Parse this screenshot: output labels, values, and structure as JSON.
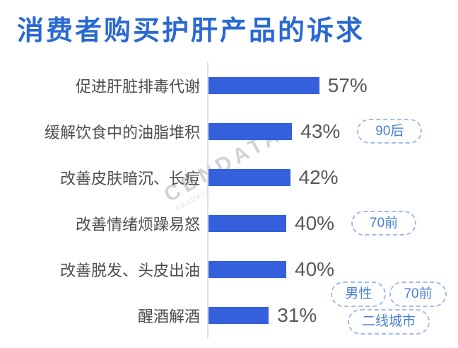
{
  "title": "消费者购买护肝产品的诉求",
  "watermark": {
    "text": "CBNDATA"
  },
  "colors": {
    "title": "#2A69D2",
    "bar": "#3461DB",
    "category_label": "#4D4D4D",
    "value_label": "#58585A",
    "badge_text": "#4A80D2",
    "badge_border": "#A3BCE6",
    "axis_line": "#DFDFE3",
    "watermark": "#AAADB6"
  },
  "chart_data": {
    "type": "bar",
    "orientation": "horizontal",
    "title": "消费者购买护肝产品的诉求",
    "categories": [
      "促进肝脏排毒代谢",
      "缓解饮食中的油脂堆积",
      "改善皮肤暗沉、长痘",
      "改善情绪烦躁易怒",
      "改善脱发、头皮出油",
      "醒酒解酒"
    ],
    "values": [
      57,
      43,
      42,
      40,
      40,
      31
    ],
    "value_labels": [
      "57%",
      "43%",
      "42%",
      "40%",
      "40%",
      "31%"
    ],
    "unit": "%",
    "xlim": [
      0,
      60
    ],
    "grid": false,
    "legend": "none",
    "annotations": [
      {
        "category": "缓解饮食中的油脂堆积",
        "badges": [
          "90后"
        ]
      },
      {
        "category": "改善情绪烦躁易怒",
        "badges": [
          "70前"
        ]
      },
      {
        "category": "醒酒解酒",
        "badges": [
          "男性",
          "70前",
          "二线城市"
        ]
      }
    ]
  },
  "badges": {
    "row2": "90后",
    "row4": "70前",
    "row6_a": "男性",
    "row6_b": "70前",
    "row6_c": "二线城市"
  }
}
